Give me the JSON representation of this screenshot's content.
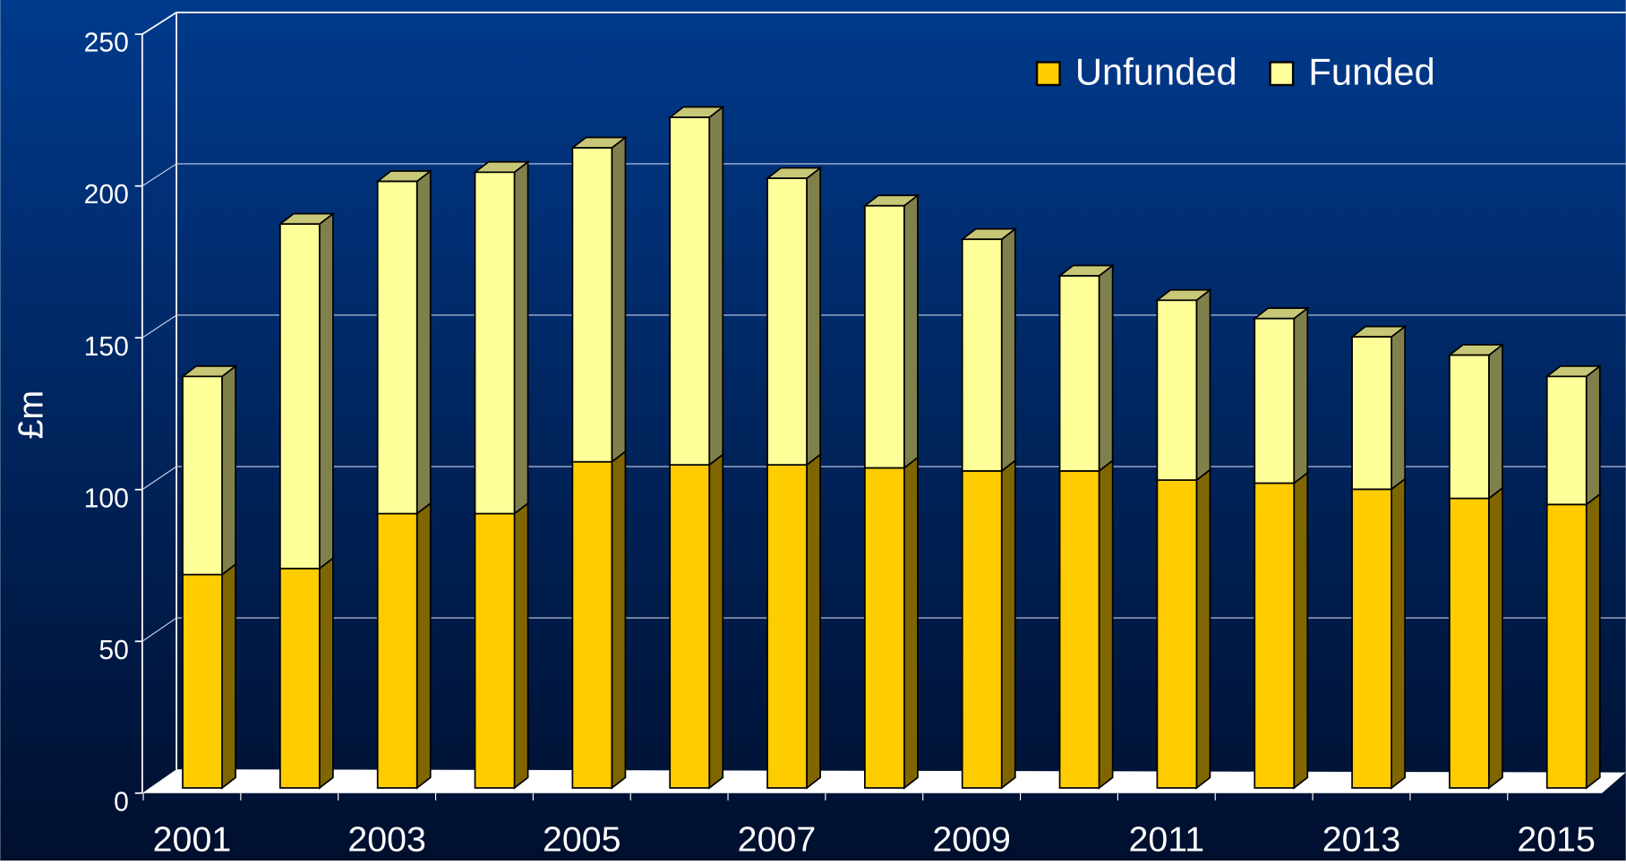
{
  "chart_data": {
    "type": "bar",
    "stacked": true,
    "y_label": "£m",
    "categories": [
      "2001",
      null,
      "2003",
      null,
      "2005",
      null,
      "2007",
      null,
      "2009",
      null,
      "2011",
      null,
      "2013",
      null,
      "2015"
    ],
    "series": [
      {
        "name": "Unfunded",
        "color": "#ffcc00",
        "values": [
          70,
          72,
          90,
          90,
          107,
          106,
          106,
          105,
          104,
          104,
          101,
          100,
          98,
          95,
          93
        ]
      },
      {
        "name": "Funded",
        "color": "#ffff99",
        "values": [
          65,
          113,
          109,
          112,
          103,
          114,
          94,
          86,
          76,
          64,
          59,
          54,
          50,
          47,
          42
        ]
      }
    ],
    "ylim": [
      0,
      250
    ],
    "yticks": [
      0,
      50,
      100,
      150,
      200,
      250
    ],
    "grid": true,
    "legend": "top-right"
  }
}
